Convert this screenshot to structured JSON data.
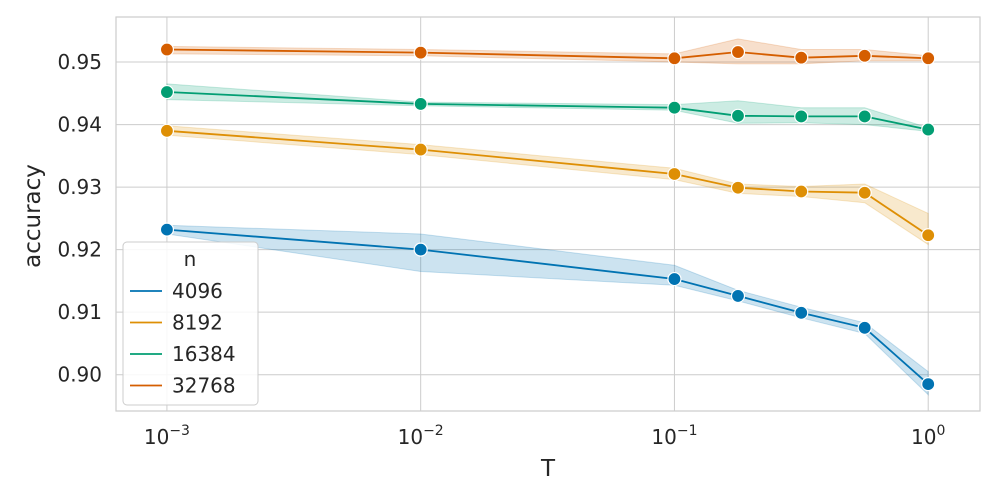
{
  "chart_data": {
    "type": "line",
    "xlabel": "T",
    "ylabel": "accuracy",
    "x_scale": "log",
    "xlim": [
      0.00063,
      1.6
    ],
    "ylim": [
      0.8942,
      0.9572
    ],
    "grid": true,
    "x_ticks": [
      {
        "value": 0.001,
        "base": "10",
        "exp": "−3"
      },
      {
        "value": 0.01,
        "base": "10",
        "exp": "−2"
      },
      {
        "value": 0.1,
        "base": "10",
        "exp": "−1"
      },
      {
        "value": 1,
        "base": "10",
        "exp": "0"
      }
    ],
    "y_ticks": [
      {
        "value": 0.9,
        "label": "0.90"
      },
      {
        "value": 0.91,
        "label": "0.91"
      },
      {
        "value": 0.92,
        "label": "0.92"
      },
      {
        "value": 0.93,
        "label": "0.93"
      },
      {
        "value": 0.94,
        "label": "0.94"
      },
      {
        "value": 0.95,
        "label": "0.95"
      }
    ],
    "x": [
      0.001,
      0.01,
      0.1,
      0.178,
      0.316,
      0.562,
      1.0
    ],
    "legend_title": "n",
    "legend_position": "lower-left",
    "series": [
      {
        "name": "4096",
        "color": "#0173b2",
        "values": [
          0.9232,
          0.92,
          0.9153,
          0.9126,
          0.9099,
          0.9075,
          0.8985
        ],
        "lower": [
          0.9225,
          0.9165,
          0.9143,
          0.9118,
          0.9091,
          0.9066,
          0.8968
        ],
        "upper": [
          0.9239,
          0.9225,
          0.9175,
          0.9135,
          0.9108,
          0.9083,
          0.9005
        ]
      },
      {
        "name": "8192",
        "color": "#de8f05",
        "values": [
          0.939,
          0.936,
          0.9321,
          0.9299,
          0.9293,
          0.9291,
          0.9223
        ],
        "lower": [
          0.9383,
          0.9352,
          0.9312,
          0.929,
          0.9285,
          0.9275,
          0.9208
        ],
        "upper": [
          0.9398,
          0.9368,
          0.933,
          0.9305,
          0.9301,
          0.9305,
          0.9258
        ]
      },
      {
        "name": "16384",
        "color": "#029e73",
        "values": [
          0.9452,
          0.9433,
          0.9427,
          0.9414,
          0.9413,
          0.9413,
          0.9392
        ],
        "lower": [
          0.944,
          0.943,
          0.9423,
          0.9402,
          0.9403,
          0.94,
          0.9389
        ],
        "upper": [
          0.9465,
          0.9436,
          0.9432,
          0.9438,
          0.9427,
          0.9427,
          0.9395
        ]
      },
      {
        "name": "32768",
        "color": "#d55e00",
        "values": [
          0.952,
          0.9515,
          0.9506,
          0.9516,
          0.9507,
          0.951,
          0.9506
        ],
        "lower": [
          0.9513,
          0.951,
          0.95,
          0.9497,
          0.9497,
          0.9502,
          0.9502
        ],
        "upper": [
          0.9525,
          0.952,
          0.9513,
          0.9537,
          0.952,
          0.952,
          0.951
        ]
      }
    ]
  }
}
